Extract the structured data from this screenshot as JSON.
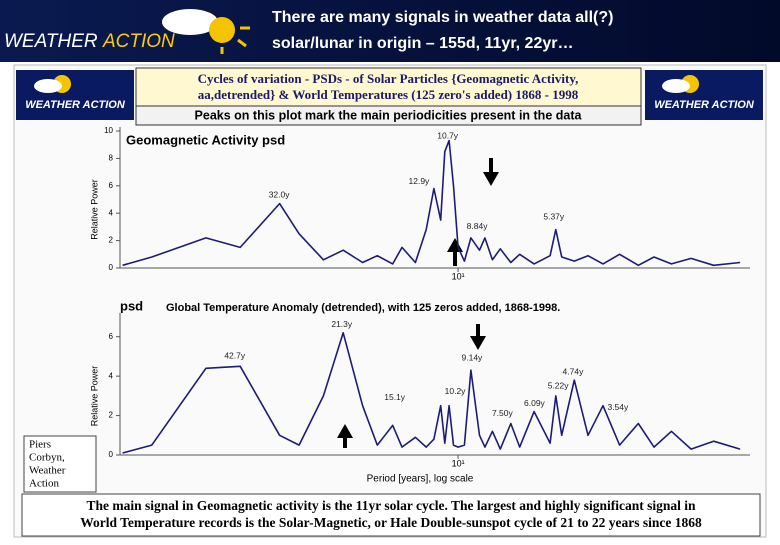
{
  "header": {
    "logo": [
      "WEATHER",
      "ACTION"
    ],
    "title": [
      "There are many signals in weather data all(?)",
      "solar/lunar in origin – 155d, 11yr, 22yr…"
    ]
  },
  "banner": {
    "logo_left": "WEATHER ACTION",
    "logo_right": "WEATHER ACTION",
    "title": [
      "Cycles of variation - PSDs - of Solar Particles {Geomagnetic Activity,",
      "aa,detrended} & World Temperatures (125 zero's added) 1868 - 1998"
    ],
    "subtitle": "Peaks on this plot mark the main periodicities present in the data"
  },
  "chart_data": [
    {
      "type": "line",
      "title": "Geomagnetic Activity psd",
      "y_label": "Relative Power",
      "color": "#1c1c78",
      "xscale": "log",
      "xlim": [
        90,
        1.5
      ],
      "xticks": [
        {
          "value": 10,
          "label": "10¹"
        }
      ],
      "ylim": [
        0,
        10
      ],
      "yticks": [
        0,
        2,
        4,
        6,
        8,
        10
      ],
      "x": [
        88.5,
        73.2,
        51.5,
        41.2,
        31.9,
        28.1,
        24.0,
        21.1,
        18.6,
        16.9,
        15.3,
        14.4,
        13.2,
        12.3,
        11.7,
        11.2,
        10.9,
        10.6,
        10.3,
        10,
        9.6,
        9.2,
        8.7,
        8.4,
        8.0,
        7.6,
        7.1,
        6.7,
        6.1,
        5.5,
        5.3,
        5.1,
        4.7,
        4.3,
        3.9,
        3.5,
        3.1,
        2.8,
        2.5,
        2.2,
        1.9,
        1.6
      ],
      "values": [
        0.2,
        0.8,
        2.2,
        1.5,
        4.7,
        2.5,
        0.6,
        1.3,
        0.4,
        0.9,
        0.3,
        1.5,
        0.4,
        2.8,
        5.8,
        3.5,
        8.5,
        9.3,
        6.0,
        1.5,
        0.5,
        2.2,
        1.3,
        2.2,
        0.6,
        1.4,
        0.4,
        1.0,
        0.3,
        0.9,
        2.8,
        0.8,
        0.5,
        0.9,
        0.3,
        1.0,
        0.2,
        0.8,
        0.3,
        0.7,
        0.2,
        0.4
      ],
      "annotations": [
        {
          "text": "32.0y",
          "x": 32,
          "y": 5.3
        },
        {
          "text": "12.9y",
          "x": 12.9,
          "y": 6.3
        },
        {
          "text": "10.7y",
          "x": 10.7,
          "y": 9.6
        },
        {
          "text": "8.84y",
          "x": 8.84,
          "y": 3.0
        },
        {
          "text": "5.37y",
          "x": 5.37,
          "y": 3.7
        }
      ]
    },
    {
      "type": "line",
      "label": "psd",
      "title": "Global Temperature Anomaly (detrended), with 125 zeros added, 1868-1998.",
      "y_label": "Relative Power",
      "x_label": "Period [years], log scale",
      "color": "#1c1c78",
      "xscale": "log",
      "xlim": [
        90,
        1.5
      ],
      "xticks": [
        {
          "value": 10,
          "label": "10¹"
        }
      ],
      "ylim": [
        0,
        7
      ],
      "yticks": [
        0,
        2,
        4,
        6
      ],
      "x": [
        88.5,
        73.2,
        51.5,
        41.2,
        31.9,
        28.1,
        24.0,
        21.1,
        18.6,
        16.9,
        15.3,
        14.4,
        13.2,
        12.3,
        11.7,
        11.2,
        10.9,
        10.6,
        10.3,
        10,
        9.6,
        9.2,
        8.7,
        8.4,
        8.0,
        7.6,
        7.1,
        6.7,
        6.1,
        5.5,
        5.3,
        5.1,
        4.7,
        4.3,
        3.9,
        3.5,
        3.1,
        2.8,
        2.5,
        2.2,
        1.9,
        1.6
      ],
      "values": [
        0.1,
        0.5,
        4.4,
        4.5,
        1.0,
        0.5,
        3.0,
        6.2,
        2.5,
        0.5,
        1.5,
        0.4,
        0.9,
        0.4,
        0.8,
        2.5,
        0.6,
        2.5,
        0.5,
        0.4,
        0.5,
        4.3,
        1.0,
        0.4,
        1.2,
        0.3,
        1.6,
        0.4,
        2.2,
        0.6,
        3.0,
        1.0,
        3.8,
        1.0,
        2.5,
        0.5,
        1.6,
        0.4,
        1.2,
        0.3,
        0.7,
        0.3
      ],
      "annotations": [
        {
          "text": "42.7y",
          "x": 42.7,
          "y": 5.0
        },
        {
          "text": "21.3y",
          "x": 21.3,
          "y": 6.6
        },
        {
          "text": "15.1y",
          "x": 15.1,
          "y": 2.9
        },
        {
          "text": "10.2y",
          "x": 10.2,
          "y": 3.2
        },
        {
          "text": "9.14y",
          "x": 9.14,
          "y": 4.9
        },
        {
          "text": "7.50y",
          "x": 7.5,
          "y": 2.1
        },
        {
          "text": "6.09y",
          "x": 6.09,
          "y": 2.6
        },
        {
          "text": "5.22y",
          "x": 5.22,
          "y": 3.5
        },
        {
          "text": "4.74y",
          "x": 4.74,
          "y": 4.2
        },
        {
          "text": "3.54y",
          "x": 3.54,
          "y": 2.4
        }
      ]
    }
  ],
  "author": [
    "Piers",
    "Corbyn,",
    "Weather",
    "Action"
  ],
  "caption": [
    "The main signal in Geomagnetic activity is the 11yr solar cycle. The largest and highly significant signal in",
    "World Temperature records is the Solar-Magnetic, or Hale Double-sunspot cycle of 21 to 22 years since 1868"
  ]
}
